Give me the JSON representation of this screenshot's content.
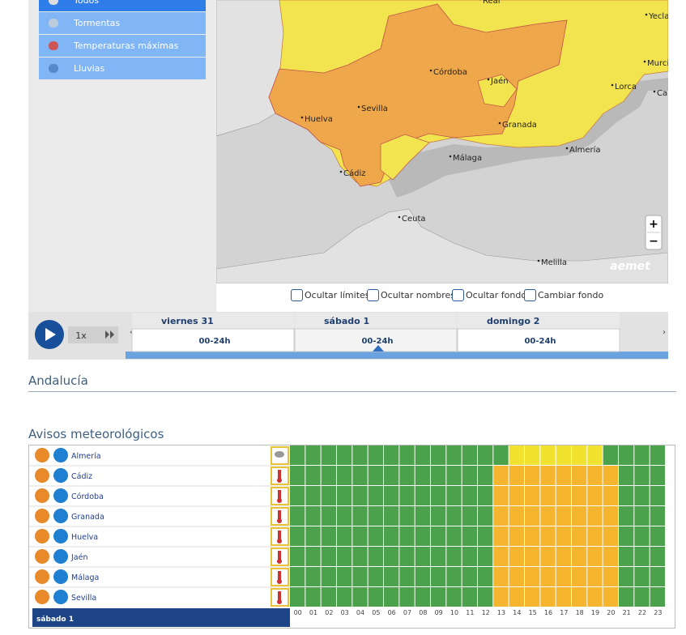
{
  "menu": {
    "items": [
      {
        "label": "Todos",
        "active": true
      },
      {
        "label": "Tormentas",
        "active": false
      },
      {
        "label": "Temperaturas máximas",
        "active": false
      },
      {
        "label": "Lluvias",
        "active": false
      }
    ]
  },
  "map": {
    "labels": [
      "Real",
      "Yecla",
      "Murci",
      "Córdoba",
      "Jaén",
      "Lorca",
      "Ca",
      "Sevilla",
      "Huelva",
      "Granada",
      "Almería",
      "Málaga",
      "Cádiz",
      "Ceuta",
      "Melilla"
    ],
    "logo": "aemet",
    "zoom_in": "+",
    "zoom_out": "−"
  },
  "options": [
    "Ocultar límites",
    "Ocultar nombres",
    "Ocultar fondo",
    "Cambiar fondo"
  ],
  "timeline": {
    "speed": "1x",
    "days": [
      {
        "day": "viernes 31",
        "range": "00-24h"
      },
      {
        "day": "sábado 1",
        "range": "00-24h",
        "selected": true
      },
      {
        "day": "domingo 2",
        "range": "00-24h"
      }
    ]
  },
  "region": "Andalucía",
  "warnings": {
    "title": "Avisos meteorológicos",
    "day": "sábado 1",
    "hours": [
      "00",
      "01",
      "02",
      "03",
      "04",
      "05",
      "06",
      "07",
      "08",
      "09",
      "10",
      "11",
      "12",
      "13",
      "14",
      "15",
      "16",
      "17",
      "18",
      "19",
      "20",
      "21",
      "22",
      "23"
    ],
    "base_color": "#4ca24c",
    "rows": [
      {
        "name": "Almería",
        "icon": "storm",
        "from": 14,
        "to": 19,
        "color": "#f0e22e"
      },
      {
        "name": "Cádiz",
        "icon": "thermometer",
        "from": 13,
        "to": 20,
        "color": "#f6b52f"
      },
      {
        "name": "Córdoba",
        "icon": "thermometer",
        "from": 13,
        "to": 20,
        "color": "#f6b52f"
      },
      {
        "name": "Granada",
        "icon": "thermometer",
        "from": 13,
        "to": 20,
        "color": "#f6b52f"
      },
      {
        "name": "Huelva",
        "icon": "thermometer",
        "from": 13,
        "to": 20,
        "color": "#f6b52f"
      },
      {
        "name": "Jaén",
        "icon": "thermometer",
        "from": 13,
        "to": 20,
        "color": "#f6b52f"
      },
      {
        "name": "Málaga",
        "icon": "thermometer",
        "from": 13,
        "to": 20,
        "color": "#f6b52f"
      },
      {
        "name": "Sevilla",
        "icon": "thermometer",
        "from": 13,
        "to": 20,
        "color": "#f6b52f"
      }
    ]
  }
}
